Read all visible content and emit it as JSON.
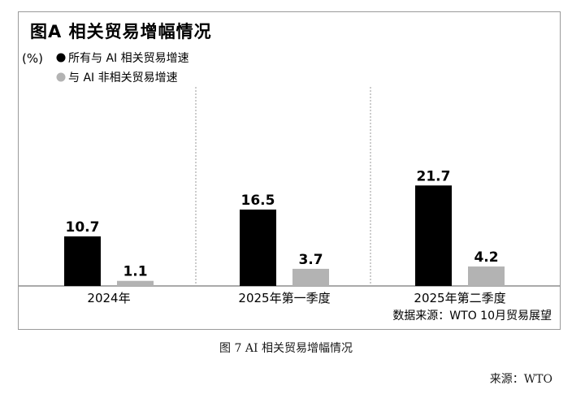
{
  "chart_data": {
    "type": "bar",
    "title": "图A 相关贸易增幅情况",
    "unit": "(%)",
    "categories": [
      "2024年",
      "2025年第一季度",
      "2025年第二季度"
    ],
    "series": [
      {
        "name": "所有与 AI 相关贸易增速",
        "values": [
          10.7,
          16.5,
          21.7
        ],
        "color": "#000000"
      },
      {
        "name": "与 AI 非相关贸易增速",
        "values": [
          1.1,
          3.7,
          4.2
        ],
        "color": "#b3b3b3"
      }
    ],
    "value_labels": [
      [
        "10.7",
        "16.5",
        "21.7"
      ],
      [
        "1.1",
        "3.7",
        "4.2"
      ]
    ],
    "ylim": [
      0,
      22
    ],
    "legend_position": "top-left",
    "source": "数据来源：WTO 10月贸易展望",
    "grid": false
  },
  "caption": "图 7 AI 相关贸易增幅情况",
  "page_source": "来源：WTO"
}
